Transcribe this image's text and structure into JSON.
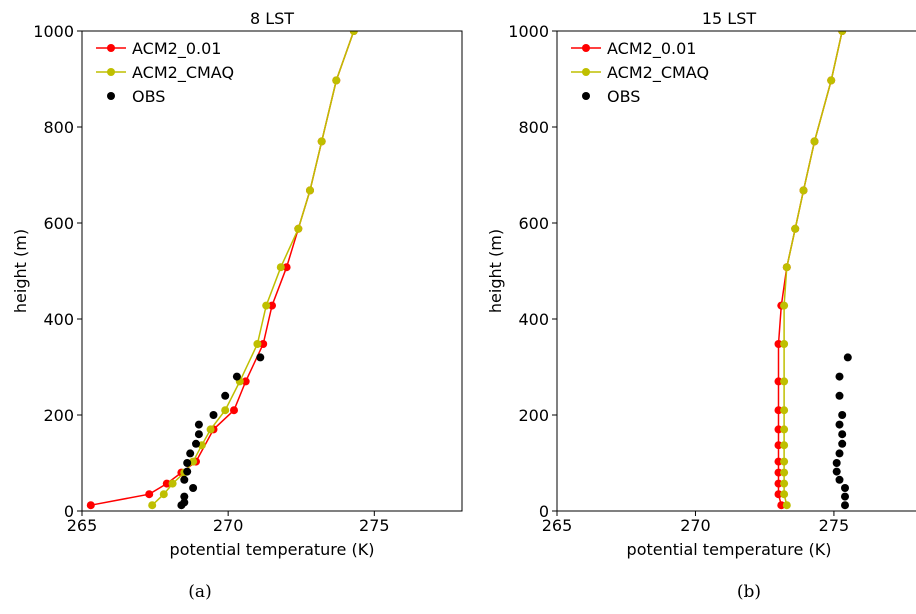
{
  "captions": [
    "(a)",
    "(b)"
  ],
  "chart_data": [
    {
      "type": "line",
      "title": "8 LST",
      "xlabel": "potential temperature (K)",
      "ylabel": "height (m)",
      "xlim": [
        265,
        278
      ],
      "ylim": [
        0,
        1000
      ],
      "xticks": [
        265,
        270,
        275
      ],
      "yticks": [
        0,
        200,
        400,
        600,
        800,
        1000
      ],
      "legend_position": "top-left",
      "grid": false,
      "series": [
        {
          "name": "ACM2_0.01",
          "kind": "line-marker",
          "color": "#ff0000",
          "x": [
            265.3,
            267.3,
            267.9,
            268.4,
            268.9,
            269.5,
            270.2,
            270.6,
            271.2,
            271.5,
            272.0,
            272.4,
            272.8,
            273.2,
            273.7,
            274.3
          ],
          "y": [
            12,
            35,
            57,
            80,
            103,
            170,
            210,
            270,
            348,
            428,
            508,
            588,
            668,
            770,
            897,
            1000
          ]
        },
        {
          "name": "ACM2_CMAQ",
          "kind": "line-marker",
          "color": "#bfbf00",
          "x": [
            267.4,
            267.8,
            268.1,
            268.5,
            268.8,
            269.1,
            269.4,
            269.9,
            270.4,
            271.0,
            271.3,
            271.8,
            272.4,
            272.8,
            273.2,
            273.7,
            274.3
          ],
          "y": [
            12,
            35,
            57,
            80,
            103,
            137,
            170,
            210,
            270,
            348,
            428,
            508,
            588,
            668,
            770,
            897,
            1000
          ]
        },
        {
          "name": "OBS",
          "kind": "scatter",
          "color": "#000000",
          "x": [
            268.4,
            268.5,
            268.8,
            268.5,
            268.5,
            268.6,
            268.6,
            268.7,
            268.9,
            269.0,
            269.0,
            269.5,
            269.9,
            270.3,
            271.1
          ],
          "y": [
            12,
            18,
            48,
            30,
            65,
            82,
            100,
            120,
            140,
            160,
            180,
            200,
            240,
            280,
            320
          ]
        }
      ]
    },
    {
      "type": "line",
      "title": "15 LST",
      "xlabel": "potential temperature (K)",
      "ylabel": "height (m)",
      "xlim": [
        265,
        278
      ],
      "ylim": [
        0,
        1000
      ],
      "xticks": [
        265,
        270,
        275
      ],
      "yticks": [
        0,
        200,
        400,
        600,
        800,
        1000
      ],
      "legend_position": "top-left",
      "grid": false,
      "series": [
        {
          "name": "ACM2_0.01",
          "kind": "line-marker",
          "color": "#ff0000",
          "x": [
            273.1,
            273.0,
            273.0,
            273.0,
            273.0,
            273.0,
            273.0,
            273.0,
            273.0,
            273.0,
            273.1,
            273.3,
            273.6,
            273.9,
            274.3,
            274.9,
            275.3
          ],
          "y": [
            12,
            35,
            57,
            80,
            103,
            137,
            170,
            210,
            270,
            348,
            428,
            508,
            588,
            668,
            770,
            897,
            1000
          ]
        },
        {
          "name": "ACM2_CMAQ",
          "kind": "line-marker",
          "color": "#bfbf00",
          "x": [
            273.3,
            273.2,
            273.2,
            273.2,
            273.2,
            273.2,
            273.2,
            273.2,
            273.2,
            273.2,
            273.2,
            273.3,
            273.6,
            273.9,
            274.3,
            274.9,
            275.3
          ],
          "y": [
            12,
            35,
            57,
            80,
            103,
            137,
            170,
            210,
            270,
            348,
            428,
            508,
            588,
            668,
            770,
            897,
            1000
          ]
        },
        {
          "name": "OBS",
          "kind": "scatter",
          "color": "#000000",
          "x": [
            275.4,
            275.4,
            275.4,
            275.2,
            275.1,
            275.1,
            275.2,
            275.3,
            275.3,
            275.2,
            275.3,
            275.2,
            275.2,
            275.5
          ],
          "y": [
            12,
            30,
            48,
            65,
            82,
            100,
            120,
            140,
            160,
            180,
            200,
            240,
            280,
            320
          ]
        }
      ]
    }
  ]
}
